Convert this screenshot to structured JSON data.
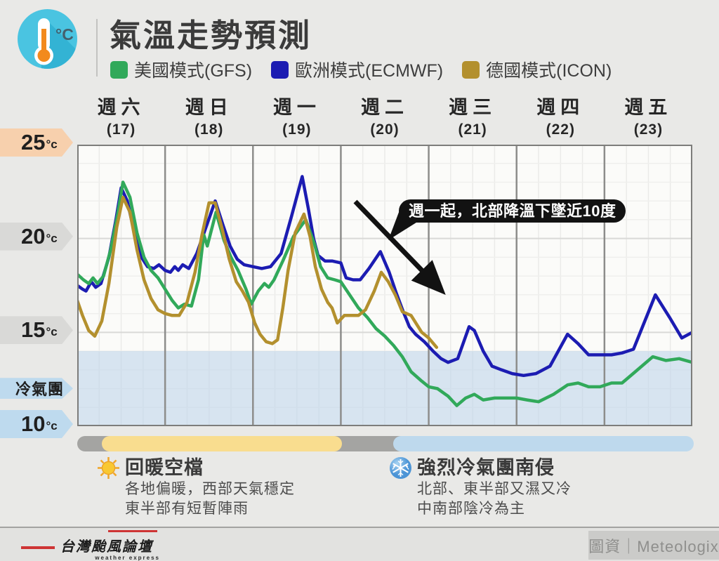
{
  "header": {
    "title": "氣溫走勢預測",
    "legend": [
      {
        "label": "美國模式(GFS)",
        "color": "#31a95a"
      },
      {
        "label": "歐洲模式(ECMWF)",
        "color": "#1c1cb2"
      },
      {
        "label": "德國模式(ICON)",
        "color": "#b3902e"
      }
    ]
  },
  "chart_data": {
    "type": "line",
    "title": "氣溫走勢預測",
    "x_axis": {
      "days": [
        {
          "name": "週六",
          "date": "(17)"
        },
        {
          "name": "週日",
          "date": "(18)"
        },
        {
          "name": "週一",
          "date": "(19)"
        },
        {
          "name": "週二",
          "date": "(20)"
        },
        {
          "name": "週三",
          "date": "(21)"
        },
        {
          "name": "週四",
          "date": "(22)"
        },
        {
          "name": "週五",
          "date": "(23)"
        }
      ],
      "minor_divisions_per_day": 4
    },
    "y_axis": {
      "unit": "°C",
      "range": [
        10,
        25
      ],
      "tags": [
        {
          "label": "25",
          "unit": "°c",
          "variant": "warm",
          "value": 25,
          "size": "big"
        },
        {
          "label": "20",
          "unit": "°c",
          "variant": "gray",
          "value": 20,
          "size": "big"
        },
        {
          "label": "15",
          "unit": "°c",
          "variant": "gray",
          "value": 15,
          "size": "big"
        },
        {
          "label": "冷氣團",
          "variant": "cold",
          "value": 11.9,
          "size": "small"
        },
        {
          "label": "10",
          "unit": "°c",
          "variant": "cold",
          "value": 10,
          "size": "big"
        }
      ],
      "cold_band_top": 14,
      "cold_band_color": "rgba(185,210,234,0.55)",
      "grid": "on"
    },
    "annotation": {
      "text": "週一起，北部降溫下墜近10度"
    },
    "series": [
      {
        "name": "歐洲模式(ECMWF)",
        "color": "#1c1cb2",
        "points": [
          [
            0.0,
            17.5
          ],
          [
            0.06,
            17.3
          ],
          [
            0.1,
            17.2
          ],
          [
            0.16,
            17.7
          ],
          [
            0.21,
            17.4
          ],
          [
            0.27,
            17.6
          ],
          [
            0.36,
            19.0
          ],
          [
            0.44,
            21.0
          ],
          [
            0.5,
            22.7
          ],
          [
            0.57,
            22.0
          ],
          [
            0.65,
            20.3
          ],
          [
            0.73,
            19.0
          ],
          [
            0.8,
            18.5
          ],
          [
            0.87,
            18.4
          ],
          [
            0.93,
            18.6
          ],
          [
            1.0,
            18.3
          ],
          [
            1.06,
            18.2
          ],
          [
            1.11,
            18.5
          ],
          [
            1.15,
            18.3
          ],
          [
            1.2,
            18.6
          ],
          [
            1.27,
            18.4
          ],
          [
            1.36,
            19.2
          ],
          [
            1.45,
            20.4
          ],
          [
            1.57,
            22.0
          ],
          [
            1.66,
            20.7
          ],
          [
            1.74,
            19.6
          ],
          [
            1.82,
            18.9
          ],
          [
            1.9,
            18.6
          ],
          [
            2.0,
            18.5
          ],
          [
            2.1,
            18.4
          ],
          [
            2.2,
            18.5
          ],
          [
            2.32,
            19.2
          ],
          [
            2.44,
            21.2
          ],
          [
            2.56,
            23.3
          ],
          [
            2.63,
            21.6
          ],
          [
            2.69,
            20.0
          ],
          [
            2.74,
            19.1
          ],
          [
            2.82,
            18.8
          ],
          [
            2.9,
            18.8
          ],
          [
            3.0,
            18.7
          ],
          [
            3.06,
            17.9
          ],
          [
            3.14,
            17.8
          ],
          [
            3.22,
            17.8
          ],
          [
            3.32,
            18.4
          ],
          [
            3.45,
            19.3
          ],
          [
            3.55,
            18.2
          ],
          [
            3.63,
            17.1
          ],
          [
            3.71,
            16.1
          ],
          [
            3.78,
            15.3
          ],
          [
            3.85,
            14.9
          ],
          [
            3.95,
            14.5
          ],
          [
            4.05,
            14.0
          ],
          [
            4.14,
            13.6
          ],
          [
            4.22,
            13.4
          ],
          [
            4.33,
            13.6
          ],
          [
            4.46,
            15.3
          ],
          [
            4.52,
            15.1
          ],
          [
            4.62,
            14.0
          ],
          [
            4.72,
            13.2
          ],
          [
            4.83,
            13.0
          ],
          [
            4.95,
            12.8
          ],
          [
            5.08,
            12.7
          ],
          [
            5.22,
            12.8
          ],
          [
            5.38,
            13.2
          ],
          [
            5.58,
            14.9
          ],
          [
            5.7,
            14.4
          ],
          [
            5.82,
            13.8
          ],
          [
            5.95,
            13.8
          ],
          [
            6.08,
            13.8
          ],
          [
            6.2,
            13.9
          ],
          [
            6.33,
            14.1
          ],
          [
            6.58,
            17.0
          ],
          [
            6.74,
            15.8
          ],
          [
            6.88,
            14.7
          ],
          [
            7.0,
            15.0
          ]
        ]
      },
      {
        "name": "美國模式(GFS)",
        "color": "#31a95a",
        "points": [
          [
            0.0,
            18.1
          ],
          [
            0.07,
            17.8
          ],
          [
            0.13,
            17.6
          ],
          [
            0.18,
            17.9
          ],
          [
            0.23,
            17.6
          ],
          [
            0.3,
            18.0
          ],
          [
            0.38,
            19.4
          ],
          [
            0.46,
            21.3
          ],
          [
            0.52,
            23.0
          ],
          [
            0.6,
            22.2
          ],
          [
            0.68,
            20.3
          ],
          [
            0.76,
            19.0
          ],
          [
            0.84,
            18.3
          ],
          [
            0.92,
            17.9
          ],
          [
            1.0,
            17.3
          ],
          [
            1.08,
            16.7
          ],
          [
            1.15,
            16.3
          ],
          [
            1.22,
            16.5
          ],
          [
            1.3,
            16.4
          ],
          [
            1.38,
            17.8
          ],
          [
            1.44,
            20.2
          ],
          [
            1.48,
            19.6
          ],
          [
            1.58,
            21.4
          ],
          [
            1.67,
            19.9
          ],
          [
            1.75,
            19.0
          ],
          [
            1.83,
            18.3
          ],
          [
            1.92,
            17.3
          ],
          [
            1.98,
            16.5
          ],
          [
            2.06,
            17.2
          ],
          [
            2.13,
            17.6
          ],
          [
            2.18,
            17.4
          ],
          [
            2.24,
            17.8
          ],
          [
            2.34,
            18.8
          ],
          [
            2.46,
            20.1
          ],
          [
            2.6,
            21.0
          ],
          [
            2.7,
            19.7
          ],
          [
            2.77,
            18.5
          ],
          [
            2.85,
            17.9
          ],
          [
            2.93,
            17.8
          ],
          [
            3.0,
            17.7
          ],
          [
            3.1,
            17.0
          ],
          [
            3.2,
            16.3
          ],
          [
            3.3,
            15.8
          ],
          [
            3.4,
            15.2
          ],
          [
            3.5,
            14.8
          ],
          [
            3.6,
            14.3
          ],
          [
            3.7,
            13.7
          ],
          [
            3.8,
            12.9
          ],
          [
            3.92,
            12.4
          ],
          [
            4.0,
            12.1
          ],
          [
            4.1,
            12.0
          ],
          [
            4.22,
            11.6
          ],
          [
            4.32,
            11.1
          ],
          [
            4.42,
            11.5
          ],
          [
            4.52,
            11.7
          ],
          [
            4.62,
            11.4
          ],
          [
            4.75,
            11.5
          ],
          [
            4.88,
            11.5
          ],
          [
            5.0,
            11.5
          ],
          [
            5.12,
            11.4
          ],
          [
            5.25,
            11.3
          ],
          [
            5.42,
            11.7
          ],
          [
            5.58,
            12.2
          ],
          [
            5.7,
            12.3
          ],
          [
            5.82,
            12.1
          ],
          [
            5.95,
            12.1
          ],
          [
            6.08,
            12.3
          ],
          [
            6.2,
            12.3
          ],
          [
            6.35,
            12.9
          ],
          [
            6.55,
            13.7
          ],
          [
            6.7,
            13.5
          ],
          [
            6.85,
            13.6
          ],
          [
            7.0,
            13.4
          ]
        ]
      },
      {
        "name": "德國模式(ICON)",
        "color": "#b3902e",
        "points": [
          [
            0.0,
            16.7
          ],
          [
            0.06,
            15.9
          ],
          [
            0.13,
            15.1
          ],
          [
            0.2,
            14.8
          ],
          [
            0.28,
            15.6
          ],
          [
            0.36,
            17.6
          ],
          [
            0.45,
            20.6
          ],
          [
            0.52,
            22.2
          ],
          [
            0.6,
            21.4
          ],
          [
            0.68,
            19.4
          ],
          [
            0.76,
            17.8
          ],
          [
            0.84,
            16.8
          ],
          [
            0.92,
            16.2
          ],
          [
            1.0,
            16.0
          ],
          [
            1.08,
            15.9
          ],
          [
            1.16,
            15.9
          ],
          [
            1.25,
            16.6
          ],
          [
            1.34,
            18.2
          ],
          [
            1.42,
            20.2
          ],
          [
            1.5,
            21.9
          ],
          [
            1.57,
            21.9
          ],
          [
            1.65,
            20.5
          ],
          [
            1.73,
            18.9
          ],
          [
            1.81,
            17.7
          ],
          [
            1.88,
            17.2
          ],
          [
            1.95,
            16.6
          ],
          [
            2.02,
            15.5
          ],
          [
            2.08,
            14.9
          ],
          [
            2.15,
            14.5
          ],
          [
            2.22,
            14.4
          ],
          [
            2.28,
            14.6
          ],
          [
            2.34,
            16.3
          ],
          [
            2.4,
            18.3
          ],
          [
            2.48,
            20.3
          ],
          [
            2.58,
            21.3
          ],
          [
            2.65,
            20.1
          ],
          [
            2.71,
            18.5
          ],
          [
            2.78,
            17.3
          ],
          [
            2.85,
            16.6
          ],
          [
            2.9,
            16.3
          ],
          [
            2.96,
            15.5
          ],
          [
            3.04,
            15.9
          ],
          [
            3.12,
            15.9
          ],
          [
            3.2,
            15.9
          ],
          [
            3.28,
            16.2
          ],
          [
            3.38,
            17.2
          ],
          [
            3.46,
            18.2
          ],
          [
            3.54,
            17.7
          ],
          [
            3.62,
            17.0
          ],
          [
            3.7,
            16.1
          ],
          [
            3.8,
            15.9
          ],
          [
            3.92,
            15.0
          ],
          [
            4.0,
            14.7
          ],
          [
            4.09,
            14.2
          ]
        ]
      }
    ]
  },
  "timeline_bars": {
    "track_color": "#a4a4a2",
    "warm_color": "#f9dd8f",
    "cold_color": "#bed9ed"
  },
  "notes": {
    "warm": {
      "title": "回暖空檔",
      "lines": [
        "各地偏暖，西部天氣穩定",
        "東半部有短暫陣雨"
      ]
    },
    "cold": {
      "title": "強烈冷氣團南侵",
      "lines": [
        "北部、東半部又濕又冷",
        "中南部陰冷為主"
      ]
    }
  },
  "footer": {
    "logo_text": "台灣颱風論壇",
    "logo_sub": "weather express",
    "credit": "圖資｜Meteologix"
  }
}
